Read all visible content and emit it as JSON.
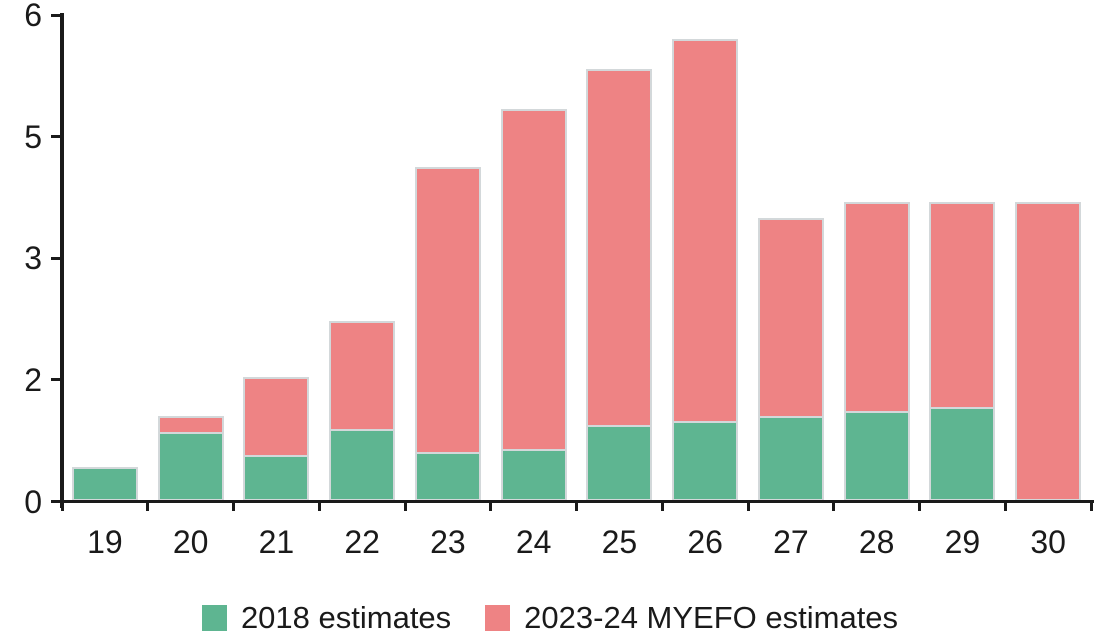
{
  "chart_data": {
    "type": "bar",
    "stacked": true,
    "title": "",
    "categories": [
      "19",
      "20",
      "21",
      "22",
      "23",
      "24",
      "25",
      "26",
      "27",
      "28",
      "29",
      "30"
    ],
    "series": [
      {
        "name": "2018 estimates",
        "color": "#5eb591",
        "values": [
          0.42,
          0.86,
          0.57,
          0.89,
          0.61,
          0.65,
          0.94,
          0.99,
          1.05,
          1.11,
          1.17,
          0
        ]
      },
      {
        "name": "2023-24 MYEFO estimates",
        "color": "#ee8384",
        "values": [
          0,
          0.2,
          0.96,
          1.34,
          3.51,
          4.19,
          4.4,
          4.71,
          2.45,
          2.58,
          2.52,
          3.69
        ]
      }
    ],
    "stacked_totals": [
      0.42,
      1.06,
      1.53,
      2.23,
      4.12,
      4.84,
      5.34,
      5.7,
      3.5,
      3.69,
      3.69,
      3.69
    ],
    "ylim": [
      0,
      6
    ],
    "y_tick_values": [
      0,
      1.5,
      3,
      4.5,
      6
    ],
    "y_tick_labels": [
      "0",
      "2",
      "3",
      "5",
      "6"
    ],
    "grid": false,
    "legend_position": "bottom",
    "axis_color": "#1a1a1a",
    "bar_border_color": "#d3d8da",
    "text_color": "#1a1a1a"
  }
}
